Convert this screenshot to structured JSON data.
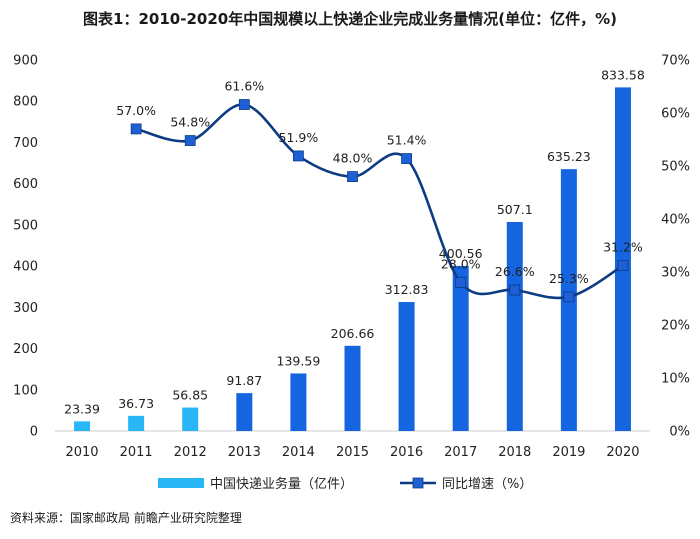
{
  "chart_data": {
    "type": "bar",
    "title": "图表1：2010-2020年中国规模以上快递企业完成业务量情况(单位：亿件，%)",
    "categories": [
      "2010",
      "2011",
      "2012",
      "2013",
      "2014",
      "2015",
      "2016",
      "2017",
      "2018",
      "2019",
      "2020"
    ],
    "series": [
      {
        "name": "中国快递业务量（亿件）",
        "type": "bar",
        "axis": "left",
        "values": [
          23.39,
          36.73,
          56.85,
          91.87,
          139.59,
          206.66,
          312.83,
          400.56,
          507.1,
          635.23,
          833.58
        ],
        "labels": [
          "23.39",
          "36.73",
          "56.85",
          "91.87",
          "139.59",
          "206.66",
          "312.83",
          "400.56",
          "507.1",
          "635.23",
          "833.58"
        ]
      },
      {
        "name": "同比增速（%）",
        "type": "line",
        "axis": "right",
        "values": [
          null,
          57.0,
          54.8,
          61.6,
          51.9,
          48.0,
          51.4,
          28.0,
          26.6,
          25.3,
          31.2
        ],
        "labels": [
          "",
          "57.0%",
          "54.8%",
          "61.6%",
          "51.9%",
          "48.0%",
          "51.4%",
          "28.0%",
          "26.6%",
          "25.3%",
          "31.2%"
        ]
      }
    ],
    "y_left": {
      "min": 0,
      "max": 900,
      "step": 100,
      "ticks": [
        "0",
        "100",
        "200",
        "300",
        "400",
        "500",
        "600",
        "700",
        "800",
        "900"
      ]
    },
    "y_right": {
      "min": 0,
      "max": 70,
      "step": 10,
      "ticks": [
        "0%",
        "10%",
        "20%",
        "30%",
        "40%",
        "50%",
        "60%",
        "70%"
      ]
    },
    "legend_position": "bottom",
    "grid": false
  },
  "source": "资料来源：国家邮政局 前瞻产业研究院整理",
  "colors": {
    "bar_light": "#29b6f6",
    "bar_dark": "#1565e0",
    "line": "#0d3c84",
    "marker": "#1f5fd6"
  }
}
